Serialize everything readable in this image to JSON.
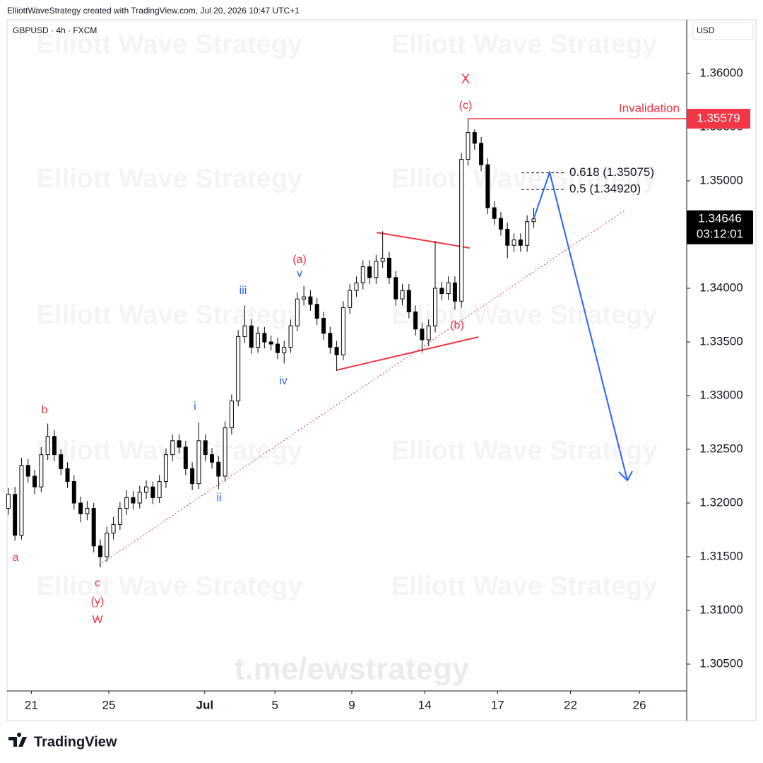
{
  "header": {
    "credit": "ElliottWaveStrategy created with TradingView.com, Jul 20, 2026 10:47 UTC+1",
    "currency": "USD",
    "brand": "TradingView",
    "watermark": "Elliott Wave Strategy",
    "channel": "t.me/ewstrategy"
  },
  "chart_data": {
    "type": "candlestick",
    "title": "GBPUSD · 4h · FXCM",
    "up_color": "#ffffff",
    "down_color": "#000000",
    "open": [
      1.3195,
      1.3208,
      1.317,
      1.3235,
      1.3225,
      1.3215,
      1.3245,
      1.3262,
      1.3245,
      1.3232,
      1.322,
      1.32,
      1.319,
      1.3195,
      1.316,
      1.315,
      1.3172,
      1.318,
      1.3195,
      1.3205,
      1.32,
      1.321,
      1.3215,
      1.3205,
      1.322,
      1.3245,
      1.3258,
      1.3252,
      1.3232,
      1.3218,
      1.3258,
      1.3245,
      1.3238,
      1.3225,
      1.327,
      1.3295,
      1.3355,
      1.3365,
      1.3345,
      1.3358,
      1.335,
      1.3348,
      1.334,
      1.3345,
      1.3365,
      1.339,
      1.3392,
      1.3385,
      1.3372,
      1.3358,
      1.3345,
      1.3338,
      1.3382,
      1.3398,
      1.3405,
      1.342,
      1.341,
      1.3425,
      1.3428,
      1.341,
      1.339,
      1.3398,
      1.3378,
      1.3362,
      1.3352,
      1.3365,
      1.34,
      1.3395,
      1.3405,
      1.3388,
      1.352,
      1.3545,
      1.3535,
      1.3515,
      1.3475,
      1.3465,
      1.3455,
      1.344,
      1.3445,
      1.344,
      1.3462
    ],
    "high": [
      1.3214,
      1.3215,
      1.3242,
      1.3241,
      1.3231,
      1.3252,
      1.3274,
      1.3268,
      1.325,
      1.3238,
      1.3226,
      1.3206,
      1.3202,
      1.32,
      1.3166,
      1.3178,
      1.3187,
      1.3201,
      1.3212,
      1.3211,
      1.3216,
      1.3221,
      1.322,
      1.3226,
      1.3251,
      1.3264,
      1.3264,
      1.3258,
      1.3238,
      1.3275,
      1.3264,
      1.3251,
      1.3244,
      1.3276,
      1.3301,
      1.3361,
      1.3384,
      1.3371,
      1.3364,
      1.3364,
      1.3356,
      1.3354,
      1.3351,
      1.3371,
      1.3396,
      1.3402,
      1.3398,
      1.3391,
      1.3378,
      1.3364,
      1.3351,
      1.3388,
      1.3404,
      1.3411,
      1.3426,
      1.3426,
      1.3431,
      1.3453,
      1.3434,
      1.3416,
      1.3404,
      1.3404,
      1.3384,
      1.3368,
      1.3371,
      1.3444,
      1.3406,
      1.3411,
      1.3411,
      1.3526,
      1.35579,
      1.3548,
      1.3541,
      1.3521,
      1.3481,
      1.3471,
      1.3461,
      1.3451,
      1.3451,
      1.3468,
      1.3475
    ],
    "low": [
      1.3189,
      1.3165,
      1.3166,
      1.3219,
      1.3208,
      1.321,
      1.324,
      1.3239,
      1.3226,
      1.3214,
      1.3194,
      1.3182,
      1.3184,
      1.3154,
      1.314,
      1.3145,
      1.3166,
      1.3175,
      1.3189,
      1.3194,
      1.3195,
      1.3204,
      1.3199,
      1.32,
      1.3214,
      1.3239,
      1.3246,
      1.3226,
      1.3212,
      1.3213,
      1.3239,
      1.3232,
      1.3213,
      1.322,
      1.3264,
      1.329,
      1.3349,
      1.3339,
      1.334,
      1.3344,
      1.3342,
      1.3334,
      1.333,
      1.334,
      1.336,
      1.3384,
      1.3379,
      1.3366,
      1.3352,
      1.3339,
      1.3323,
      1.3333,
      1.3376,
      1.3392,
      1.3399,
      1.3404,
      1.3404,
      1.3419,
      1.3404,
      1.3384,
      1.3384,
      1.3372,
      1.3356,
      1.334,
      1.3346,
      1.3359,
      1.3389,
      1.3389,
      1.338,
      1.3382,
      1.3514,
      1.3529,
      1.3509,
      1.3469,
      1.3459,
      1.3449,
      1.3428,
      1.3434,
      1.3434,
      1.3434,
      1.3456
    ],
    "close": [
      1.3208,
      1.317,
      1.3235,
      1.3225,
      1.3215,
      1.3245,
      1.3262,
      1.3245,
      1.3232,
      1.322,
      1.32,
      1.319,
      1.3195,
      1.316,
      1.315,
      1.3172,
      1.318,
      1.3195,
      1.3205,
      1.32,
      1.321,
      1.3215,
      1.3205,
      1.322,
      1.3245,
      1.3258,
      1.3252,
      1.3232,
      1.3218,
      1.3258,
      1.3245,
      1.3238,
      1.3225,
      1.327,
      1.3295,
      1.3355,
      1.3365,
      1.3345,
      1.3358,
      1.335,
      1.3348,
      1.334,
      1.3345,
      1.3365,
      1.339,
      1.3392,
      1.3385,
      1.3372,
      1.3358,
      1.3345,
      1.3338,
      1.3382,
      1.3398,
      1.3405,
      1.342,
      1.341,
      1.3425,
      1.3428,
      1.341,
      1.339,
      1.3398,
      1.3378,
      1.3362,
      1.3352,
      1.3365,
      1.34,
      1.3395,
      1.3405,
      1.3388,
      1.352,
      1.3545,
      1.3535,
      1.3515,
      1.3475,
      1.3465,
      1.3455,
      1.344,
      1.3445,
      1.344,
      1.3462,
      1.34646
    ],
    "xlim": [
      -0.2,
      103.3
    ],
    "xticks": [
      {
        "value": 3.5,
        "label": "21"
      },
      {
        "value": 15.3,
        "label": "25"
      },
      {
        "value": 29.9,
        "label": "Jul"
      },
      {
        "value": 40.6,
        "label": "5"
      },
      {
        "value": 52.3,
        "label": "9"
      },
      {
        "value": 63.4,
        "label": "14"
      },
      {
        "value": 74.5,
        "label": "17"
      },
      {
        "value": 85.6,
        "label": "22"
      },
      {
        "value": 96.1,
        "label": "26"
      }
    ],
    "ylim": [
      1.3025,
      1.365
    ],
    "yticks": [
      {
        "value": 1.305,
        "label": "1.30500"
      },
      {
        "value": 1.31,
        "label": "1.31000"
      },
      {
        "value": 1.315,
        "label": "1.31500"
      },
      {
        "value": 1.32,
        "label": "1.32000"
      },
      {
        "value": 1.325,
        "label": "1.32500"
      },
      {
        "value": 1.33,
        "label": "1.33000"
      },
      {
        "value": 1.335,
        "label": "1.33500"
      },
      {
        "value": 1.34,
        "label": "1.34000"
      },
      {
        "value": 1.345,
        "label": "1.34500"
      },
      {
        "value": 1.35,
        "label": "1.35000"
      },
      {
        "value": 1.355,
        "label": "1.35500"
      },
      {
        "value": 1.36,
        "label": "1.36000"
      }
    ],
    "countdown": "03:12:01",
    "invalidation": {
      "label": "Invalidation",
      "value": 1.35579,
      "color": "#f23645"
    },
    "fib_levels": [
      {
        "value": 1.35075,
        "label": "0.618 (1.35075)"
      },
      {
        "value": 1.3492,
        "label": "0.5 (1.34920)"
      }
    ],
    "annotations": [
      {
        "text": "a",
        "color": "#f23645"
      },
      {
        "text": "b",
        "color": "#f23645"
      },
      {
        "text": "c",
        "color": "#f23645"
      },
      {
        "text": "(y)",
        "color": "#f23645"
      },
      {
        "text": "W",
        "color": "#f23645"
      },
      {
        "text": "i",
        "color": "#2962ff"
      },
      {
        "text": "ii",
        "color": "#2962ff"
      },
      {
        "text": "iii",
        "color": "#2962ff"
      },
      {
        "text": "iv",
        "color": "#2962ff"
      },
      {
        "text": "v",
        "color": "#2962ff"
      },
      {
        "text": "(a)",
        "color": "#f23645"
      },
      {
        "text": "(b)",
        "color": "#f23645"
      },
      {
        "text": "(c)",
        "color": "#f23645"
      },
      {
        "text": "X",
        "color": "#f23645"
      }
    ]
  }
}
